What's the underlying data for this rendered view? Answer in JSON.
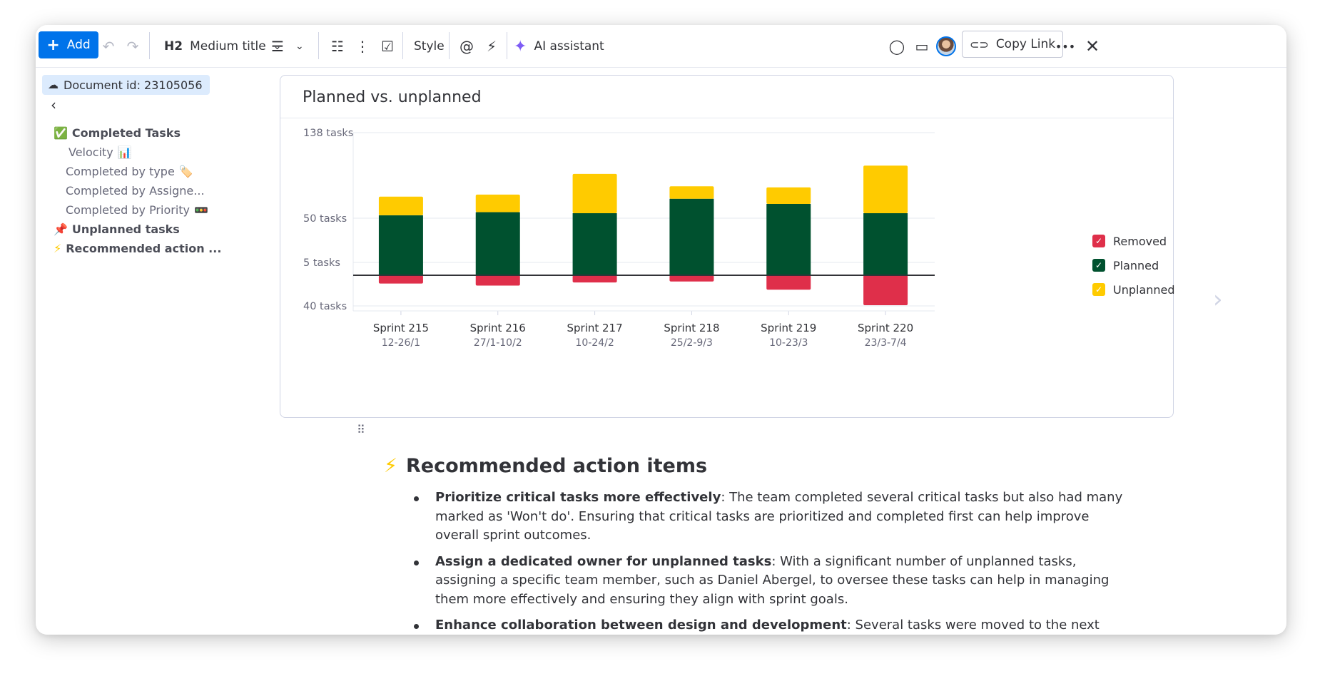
{
  "toolbar": {
    "add_label": "Add",
    "heading_badge": "H2",
    "heading_style": "Medium title",
    "style_label": "Style",
    "ai_label": "AI assistant",
    "copy_link_label": "Copy Link",
    "more_label": "•••"
  },
  "sidebar": {
    "doc_id": "Document id: 23105056",
    "items": [
      {
        "label": "Completed Tasks",
        "emoji": "✅",
        "bold": true
      },
      {
        "label": "Velocity",
        "emoji": "📊",
        "bold": false
      },
      {
        "label": "Completed by type",
        "emoji": "🏷️",
        "bold": false
      },
      {
        "label": "Completed by Assigne...",
        "emoji": "",
        "bold": false
      },
      {
        "label": "Completed by Priority",
        "emoji": "🚥",
        "bold": false
      },
      {
        "label": "Unplanned tasks",
        "emoji": "📌",
        "bold": true
      },
      {
        "label": "Recommended action ...",
        "emoji": "⚡",
        "bold": true
      }
    ]
  },
  "chart_card": {
    "title": "Planned vs. unplanned"
  },
  "chart_data": {
    "type": "bar",
    "stacked": true,
    "categories": [
      "Sprint 215",
      "Sprint 216",
      "Sprint 217",
      "Sprint 218",
      "Sprint 219",
      "Sprint 220"
    ],
    "subcategories": [
      "12-26/1",
      "27/1-10/2",
      "10-24/2",
      "25/2-9/3",
      "10-23/3",
      "23/3-7/4"
    ],
    "y_tick_labels": [
      "138 tasks",
      "50 tasks",
      "5 tasks",
      "40 tasks"
    ],
    "series": [
      {
        "name": "Removed",
        "color": "#df2f4a",
        "values": [
          -8,
          -10,
          -7,
          -6,
          -14,
          -29
        ]
      },
      {
        "name": "Planned",
        "color": "#00512f",
        "values": [
          58,
          61,
          60,
          74,
          69,
          60
        ]
      },
      {
        "name": "Unplanned",
        "color": "#ffcb00",
        "values": [
          18,
          17,
          38,
          12,
          16,
          46
        ]
      }
    ],
    "legend_position": "right",
    "grid": true
  },
  "content": {
    "section_emoji": "⚡",
    "section_title": "Recommended action items",
    "bullets": [
      {
        "bold": "Prioritize critical tasks more effectively",
        "text": ": The team completed several critical tasks but also had many marked as 'Won't do'. Ensuring that critical tasks are prioritized and completed first can help improve overall sprint outcomes."
      },
      {
        "bold": "Assign a dedicated owner for unplanned tasks",
        "text": ": With a significant number of unplanned tasks, assigning a specific team member, such as Daniel Abergel, to oversee these tasks can help in managing them more effectively and ensuring they align with sprint goals."
      },
      {
        "bold": "Enhance collaboration between design and development",
        "text": ": Several tasks were moved to the next sprint"
      }
    ]
  },
  "colors": {
    "accent": "#0073ea",
    "removed": "#df2f4a",
    "planned": "#00512f",
    "unplanned": "#ffcb00"
  }
}
